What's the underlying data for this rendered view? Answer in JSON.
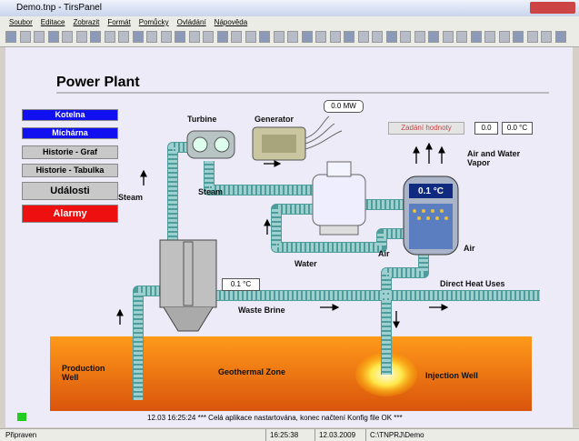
{
  "window": {
    "title": "Demo.tnp - TirsPanel"
  },
  "menu": [
    "Soubor",
    "Editace",
    "Zobrazit",
    "Formát",
    "Pomůcky",
    "Ovládání",
    "Nápověda"
  ],
  "panel": {
    "title": "Power Plant",
    "buttons": [
      "Kotelna",
      "Míchárna",
      "Historie - Graf",
      "Historie - Tabulka",
      "Události",
      "Alarmy"
    ],
    "labels": [
      "Turbine",
      "Generator",
      "0.0 MW",
      "Zadání hodnoty",
      "0.0",
      "0.0 °C",
      "Air and Water Vapor",
      "Steam",
      "Steam",
      "0.1 °C",
      "Water",
      "Air",
      "Air",
      "0.1 °C",
      "Direct Heat Uses",
      "Waste Brine",
      "Production Well",
      "Geothermal Zone",
      "Injection Well"
    ]
  },
  "message": "12.03 16:25:24 *** Celá aplikace nastartována, konec načtení Konfig file OK ***",
  "status_bar": [
    "Připraven",
    "16:25:38",
    "12.03.2009",
    "C:\\TNPRJ\\Demo"
  ]
}
